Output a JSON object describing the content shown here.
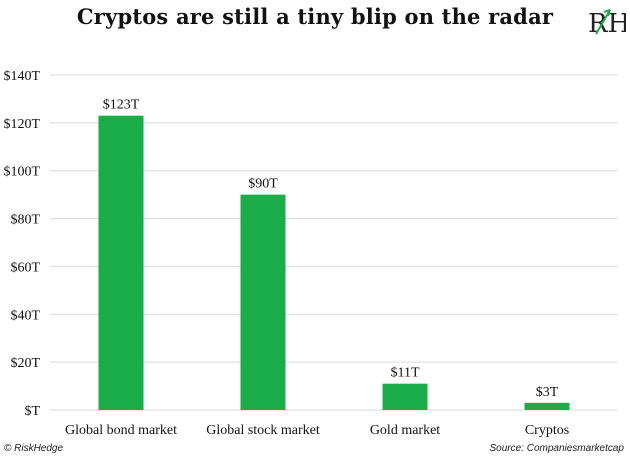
{
  "title": "Cryptos are still a tiny blip on the radar",
  "logo": {
    "icon": "rh-logo-icon",
    "text": "RH"
  },
  "footer": {
    "copyright": "© RiskHedge",
    "source": "Source: Companiesmarketcap"
  },
  "colors": {
    "bar": "#1aad4a",
    "grid": "#d9d9d9",
    "text": "#111111"
  },
  "chart_data": {
    "type": "bar",
    "title": "Cryptos are still a tiny blip on the radar",
    "categories": [
      "Global bond market",
      "Global stock market",
      "Gold market",
      "Cryptos"
    ],
    "values": [
      123,
      90,
      11,
      3
    ],
    "data_labels": [
      "$123T",
      "$90T",
      "$11T",
      "$3T"
    ],
    "yticks": [
      0,
      20,
      40,
      60,
      80,
      100,
      120,
      140
    ],
    "ytick_labels": [
      "$T",
      "$20T",
      "$40T",
      "$60T",
      "$80T",
      "$100T",
      "$120T",
      "$140T"
    ],
    "ylim": [
      0,
      140
    ],
    "grid": true,
    "xlabel": "",
    "ylabel": ""
  }
}
